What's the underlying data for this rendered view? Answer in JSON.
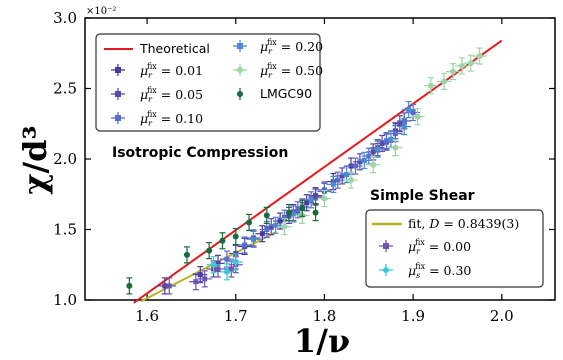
{
  "chart_data": {
    "type": "scatter",
    "xlabel": "1/ν",
    "ylabel": "χ/d³",
    "y_multiplier": "×10⁻²",
    "xlim": [
      1.53,
      2.06
    ],
    "ylim": [
      1.0,
      3.0
    ],
    "x_ticks": [
      "1.6",
      "1.7",
      "1.8",
      "1.9",
      "2.0"
    ],
    "y_ticks": [
      "1.0",
      "1.5",
      "2.0",
      "2.5",
      "3.0"
    ],
    "annotations": [
      "Isotropic Compression",
      "Simple Shear"
    ],
    "lines": [
      {
        "name": "Theoretical",
        "color": "#e41a1c",
        "x": [
          1.585,
          2.0
        ],
        "y": [
          0.98,
          2.84
        ]
      },
      {
        "name": "fit, D = 0.8439(3)",
        "color": "#b5b52a",
        "x": [
          1.593,
          1.745
        ],
        "y": [
          0.99,
          1.48
        ]
      }
    ],
    "series": [
      {
        "name": "μ_r^fix = 0.01",
        "color": "#4b3a9c",
        "marker": "square",
        "x": [
          1.62,
          1.66,
          1.68,
          1.71,
          1.73,
          1.75,
          1.765,
          1.78,
          1.79,
          1.81,
          1.83,
          1.86,
          1.87,
          1.88,
          1.89
        ],
        "y": [
          1.1,
          1.18,
          1.26,
          1.38,
          1.47,
          1.56,
          1.62,
          1.69,
          1.74,
          1.84,
          1.95,
          2.08,
          2.12,
          2.2,
          2.27
        ]
      },
      {
        "name": "μ_r^fix = 0.05",
        "color": "#5a4aa8",
        "marker": "square",
        "x": [
          1.675,
          1.7,
          1.72,
          1.74,
          1.76,
          1.775,
          1.79,
          1.8,
          1.82,
          1.84,
          1.855,
          1.865,
          1.885
        ],
        "y": [
          1.22,
          1.33,
          1.44,
          1.52,
          1.6,
          1.66,
          1.73,
          1.78,
          1.88,
          1.98,
          2.05,
          2.11,
          2.25
        ]
      },
      {
        "name": "μ_r^fix = 0.10",
        "color": "#5a6cc8",
        "marker": "square",
        "x": [
          1.69,
          1.71,
          1.735,
          1.755,
          1.77,
          1.785,
          1.8,
          1.815,
          1.835,
          1.85,
          1.87,
          1.88,
          1.89,
          1.9
        ],
        "y": [
          1.29,
          1.39,
          1.5,
          1.58,
          1.64,
          1.71,
          1.77,
          1.85,
          1.95,
          2.02,
          2.13,
          2.18,
          2.27,
          2.33
        ]
      },
      {
        "name": "μ_r^fix = 0.20",
        "color": "#4a8ad0",
        "marker": "square",
        "x": [
          1.72,
          1.745,
          1.765,
          1.785,
          1.81,
          1.825,
          1.845,
          1.86,
          1.875,
          1.89,
          1.895
        ],
        "y": [
          1.43,
          1.53,
          1.61,
          1.71,
          1.82,
          1.89,
          1.99,
          2.07,
          2.14,
          2.23,
          2.35
        ]
      },
      {
        "name": "μ_r^fix = 0.50",
        "color": "#9fd4a8",
        "marker": "circle",
        "x": [
          1.755,
          1.775,
          1.8,
          1.83,
          1.855,
          1.88,
          1.905,
          1.92,
          1.935,
          1.945,
          1.955,
          1.965,
          1.975
        ],
        "y": [
          1.52,
          1.6,
          1.72,
          1.85,
          1.96,
          2.08,
          2.3,
          2.52,
          2.55,
          2.62,
          2.66,
          2.68,
          2.73
        ]
      },
      {
        "name": "LMGC90",
        "color": "#1a6b3c",
        "marker": "circle",
        "x": [
          1.58,
          1.645,
          1.67,
          1.685,
          1.7,
          1.715,
          1.735,
          1.76,
          1.775,
          1.79
        ],
        "y": [
          1.1,
          1.32,
          1.35,
          1.42,
          1.45,
          1.55,
          1.6,
          1.62,
          1.65,
          1.62
        ]
      },
      {
        "name": "μ_r^fix = 0.00",
        "color": "#6a55b0",
        "marker": "square",
        "x": [
          1.625,
          1.655,
          1.665,
          1.68,
          1.695,
          1.7
        ],
        "y": [
          1.1,
          1.13,
          1.15,
          1.22,
          1.22,
          1.25
        ]
      },
      {
        "name": "μ_s^fix = 0.30",
        "color": "#3ec8d8",
        "marker": "circle",
        "x": [
          1.675,
          1.69,
          1.7
        ],
        "y": [
          1.25,
          1.2,
          1.27
        ]
      }
    ]
  },
  "legend_top": {
    "theoretical": "Theoretical",
    "items_left": [
      {
        "sym": "μ",
        "sub": "r",
        "sup": "fix",
        "val": " = 0.01"
      },
      {
        "sym": "μ",
        "sub": "r",
        "sup": "fix",
        "val": " = 0.05"
      },
      {
        "sym": "μ",
        "sub": "r",
        "sup": "fix",
        "val": " = 0.10"
      }
    ],
    "items_right": [
      {
        "sym": "μ",
        "sub": "r",
        "sup": "fix",
        "val": " = 0.20"
      },
      {
        "sym": "μ",
        "sub": "r",
        "sup": "fix",
        "val": " = 0.50"
      }
    ],
    "lmgc": "LMGC90"
  },
  "legend_bottom": {
    "fit_prefix": "fit, ",
    "fit_d": "D",
    "fit_val": " = 0.8439(3)",
    "items": [
      {
        "sym": "μ",
        "sub": "r",
        "sup": "fix",
        "val": " = 0.00"
      },
      {
        "sym": "μ",
        "sub": "s",
        "sup": "fix",
        "val": " = 0.30"
      }
    ]
  }
}
